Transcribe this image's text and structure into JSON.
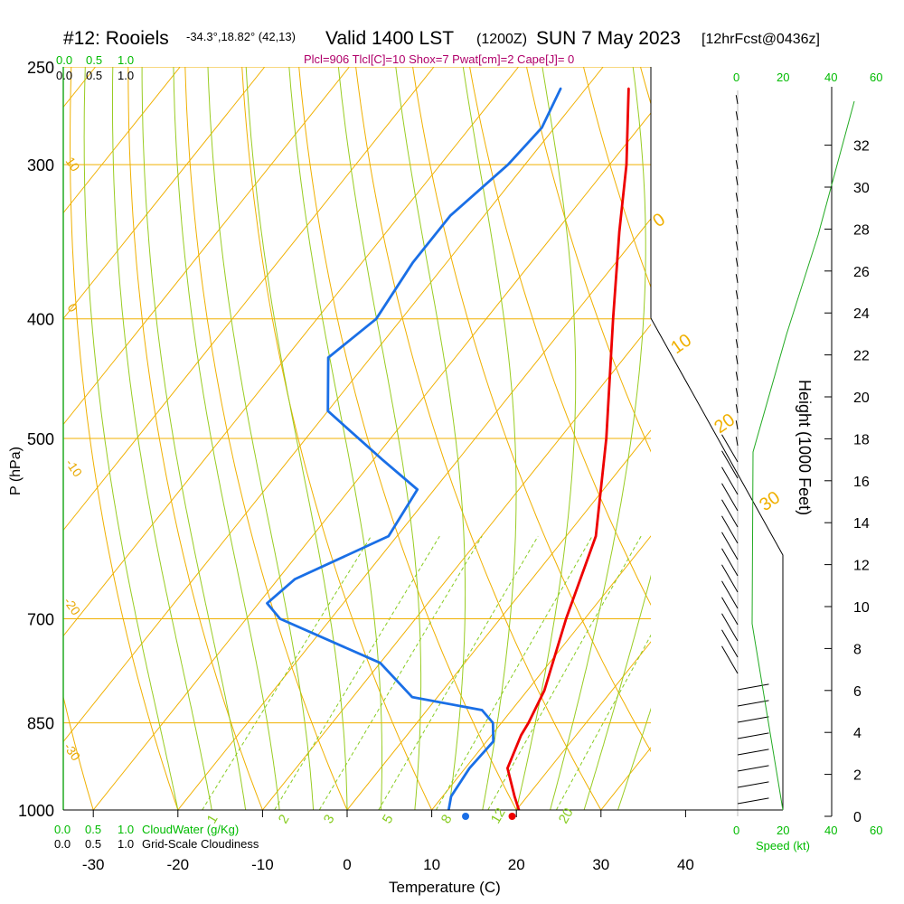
{
  "title": {
    "station": "#12: Rooiels",
    "coords": "-34.3°,18.82° (42,13)",
    "valid": "Valid 1400 LST",
    "utc": "(1200Z)",
    "date": "SUN 7 May 2023",
    "forecast": "[12hrFcst@0436z]"
  },
  "stats_line": "Plcl=906 Tlcl[C]=10 Shox=7 Pwat[cm]=2 Cape[J]= 0",
  "cloud_scale_top": [
    "0.0",
    "0.5",
    "1.0"
  ],
  "cloud_scale_top_black": [
    "0.0",
    "0.5",
    "1.0"
  ],
  "cloud_scale_bottom_green": [
    "0.0",
    "0.5",
    "1.0"
  ],
  "cloud_scale_bottom_black": [
    "0.0",
    "0.5",
    "1.0"
  ],
  "cloudwater_label": "CloudWater (g/Kg)",
  "cloudiness_label": "Grid-Scale Cloudiness",
  "speed_label": "Speed (kt)",
  "speed_ticks_top": [
    "0",
    "20",
    "40",
    "60"
  ],
  "speed_ticks_bottom": [
    "0",
    "20",
    "40",
    "60"
  ],
  "colors": {
    "temperature": "#ee0000",
    "dewpoint": "#1a6fe6",
    "isotherm": "#f0b000",
    "dry_adiabat": "#f0b000",
    "moist_adiabat": "#99cc22",
    "mixing_ratio": "#88cc22",
    "height_curve": "#22aa22"
  },
  "chart_data": {
    "type": "line",
    "subtype": "skew-T log-P sounding",
    "xlabel": "Temperature (C)",
    "ylabel": "P (hPa)",
    "y2label": "Height (1000 Feet)",
    "x_ticks": [
      "-30",
      "-20",
      "-10",
      "0",
      "10",
      "20",
      "30",
      "40"
    ],
    "pressure_ticks": [
      "250",
      "300",
      "400",
      "500",
      "700",
      "850",
      "1000"
    ],
    "height_ticks": [
      "0",
      "2",
      "4",
      "6",
      "8",
      "10",
      "12",
      "14",
      "16",
      "18",
      "20",
      "22",
      "24",
      "26",
      "28",
      "30",
      "32"
    ],
    "mixing_ratio_labels": [
      "1",
      "2",
      "3",
      "5",
      "8",
      "12",
      "20"
    ],
    "adiabat_labels": [
      "10",
      "0",
      "-10",
      "-20",
      "-30"
    ],
    "moist_labels": [
      "0",
      "10",
      "20",
      "30"
    ],
    "series": [
      {
        "name": "Temperature",
        "points": [
          {
            "p": 1000,
            "t": 20.3
          },
          {
            "p": 975,
            "t": 18.5
          },
          {
            "p": 925,
            "t": 15.0
          },
          {
            "p": 870,
            "t": 13.5
          },
          {
            "p": 850,
            "t": 13.2
          },
          {
            "p": 800,
            "t": 12.0
          },
          {
            "p": 700,
            "t": 7.8
          },
          {
            "p": 600,
            "t": 3.5
          },
          {
            "p": 500,
            "t": -4.5
          },
          {
            "p": 400,
            "t": -15.0
          },
          {
            "p": 340,
            "t": -22.5
          },
          {
            "p": 300,
            "t": -28.0
          },
          {
            "p": 260,
            "t": -35.0
          }
        ]
      },
      {
        "name": "Dewpoint",
        "points": [
          {
            "p": 1000,
            "t": 12.0
          },
          {
            "p": 975,
            "t": 11.0
          },
          {
            "p": 925,
            "t": 10.5
          },
          {
            "p": 880,
            "t": 10.8
          },
          {
            "p": 850,
            "t": 9.0
          },
          {
            "p": 830,
            "t": 6.5
          },
          {
            "p": 810,
            "t": -3.0
          },
          {
            "p": 760,
            "t": -10.0
          },
          {
            "p": 700,
            "t": -26.0
          },
          {
            "p": 680,
            "t": -29.0
          },
          {
            "p": 650,
            "t": -28.0
          },
          {
            "p": 600,
            "t": -21.0
          },
          {
            "p": 550,
            "t": -22.0
          },
          {
            "p": 520,
            "t": -29.0
          },
          {
            "p": 475,
            "t": -40.0
          },
          {
            "p": 430,
            "t": -45.0
          },
          {
            "p": 400,
            "t": -43.0
          },
          {
            "p": 360,
            "t": -44.0
          },
          {
            "p": 330,
            "t": -44.0
          },
          {
            "p": 300,
            "t": -42.0
          },
          {
            "p": 280,
            "t": -41.5
          },
          {
            "p": 260,
            "t": -43.0
          }
        ]
      }
    ],
    "surface": {
      "temperature": 19.5,
      "dewpoint": 14.0
    },
    "xlim": [
      -35,
      48
    ],
    "ylim": [
      250,
      1000
    ],
    "ylog": true,
    "grid": true
  }
}
